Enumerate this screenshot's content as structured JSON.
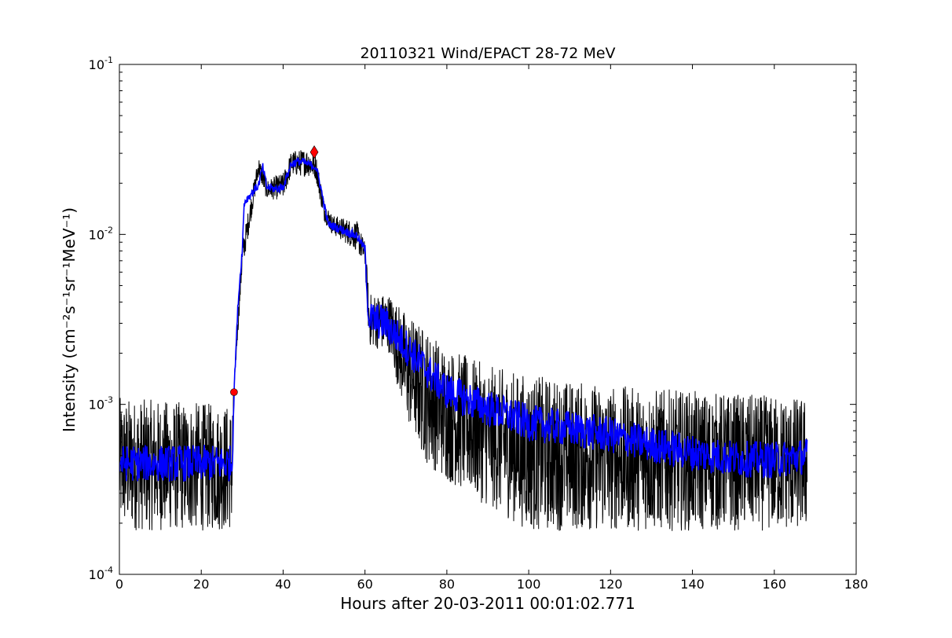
{
  "chart_data": {
    "type": "line",
    "title": "20110321 Wind/EPACT 28-72 MeV",
    "xlabel": "Hours after 20-03-2011 00:01:02.771",
    "ylabel": "Intensity (cm⁻²s⁻¹sr⁻¹MeV⁻¹)",
    "xlim": [
      0,
      180
    ],
    "ylim": [
      0.0001,
      0.1
    ],
    "yscale": "log",
    "grid": false,
    "x_ticks": [
      0,
      20,
      40,
      60,
      80,
      100,
      120,
      140,
      160,
      180
    ],
    "x_tick_labels": [
      "0",
      "20",
      "40",
      "60",
      "80",
      "100",
      "120",
      "140",
      "160",
      "180"
    ],
    "y_ticks": [
      0.0001,
      0.001,
      0.01,
      0.1
    ],
    "y_tick_labels": [
      {
        "base": "10",
        "exp": "-4"
      },
      {
        "base": "10",
        "exp": "-3"
      },
      {
        "base": "10",
        "exp": "-2"
      },
      {
        "base": "10",
        "exp": "-1"
      }
    ],
    "series": [
      {
        "style": "raw",
        "color": "#000000",
        "envelope": [
          {
            "x": 0,
            "low": 0.00018,
            "high": 0.0011
          },
          {
            "x": 27.5,
            "low": 0.00018,
            "high": 0.001
          },
          {
            "x": 28,
            "low": 0.0012,
            "high": 0.0013
          },
          {
            "x": 30,
            "low": 0.006,
            "high": 0.009
          },
          {
            "x": 34,
            "low": 0.022,
            "high": 0.029
          },
          {
            "x": 36,
            "low": 0.016,
            "high": 0.021
          },
          {
            "x": 40,
            "low": 0.016,
            "high": 0.023
          },
          {
            "x": 42,
            "low": 0.022,
            "high": 0.031
          },
          {
            "x": 46,
            "low": 0.022,
            "high": 0.032
          },
          {
            "x": 48,
            "low": 0.021,
            "high": 0.03
          },
          {
            "x": 50,
            "low": 0.012,
            "high": 0.016
          },
          {
            "x": 52,
            "low": 0.01,
            "high": 0.013
          },
          {
            "x": 58,
            "low": 0.008,
            "high": 0.012
          },
          {
            "x": 60,
            "low": 0.0065,
            "high": 0.009
          },
          {
            "x": 61,
            "low": 0.0022,
            "high": 0.0045
          },
          {
            "x": 66,
            "low": 0.002,
            "high": 0.0045
          },
          {
            "x": 70,
            "low": 0.0008,
            "high": 0.0035
          },
          {
            "x": 75,
            "low": 0.00045,
            "high": 0.0028
          },
          {
            "x": 80,
            "low": 0.00035,
            "high": 0.0022
          },
          {
            "x": 90,
            "low": 0.00025,
            "high": 0.0017
          },
          {
            "x": 100,
            "low": 0.00018,
            "high": 0.0015
          },
          {
            "x": 120,
            "low": 0.00018,
            "high": 0.0013
          },
          {
            "x": 140,
            "low": 0.00018,
            "high": 0.0012
          },
          {
            "x": 168,
            "low": 0.00018,
            "high": 0.0011
          }
        ]
      },
      {
        "style": "smoothed",
        "color": "#0000ff",
        "values": [
          {
            "x": 0,
            "y": 0.00045
          },
          {
            "x": 10,
            "y": 0.00045
          },
          {
            "x": 20,
            "y": 0.00045
          },
          {
            "x": 27.5,
            "y": 0.00045
          },
          {
            "x": 28,
            "y": 0.0012
          },
          {
            "x": 29,
            "y": 0.004
          },
          {
            "x": 30,
            "y": 0.008
          },
          {
            "x": 30.5,
            "y": 0.0155
          },
          {
            "x": 34,
            "y": 0.0195
          },
          {
            "x": 35,
            "y": 0.025
          },
          {
            "x": 36,
            "y": 0.019
          },
          {
            "x": 38,
            "y": 0.0185
          },
          {
            "x": 40,
            "y": 0.019
          },
          {
            "x": 42,
            "y": 0.026
          },
          {
            "x": 44,
            "y": 0.027
          },
          {
            "x": 46,
            "y": 0.026
          },
          {
            "x": 48,
            "y": 0.025
          },
          {
            "x": 49,
            "y": 0.02
          },
          {
            "x": 50,
            "y": 0.015
          },
          {
            "x": 51,
            "y": 0.0115
          },
          {
            "x": 55,
            "y": 0.0105
          },
          {
            "x": 58,
            "y": 0.0098
          },
          {
            "x": 60,
            "y": 0.0082
          },
          {
            "x": 60.8,
            "y": 0.0032
          },
          {
            "x": 65,
            "y": 0.003
          },
          {
            "x": 70,
            "y": 0.0022
          },
          {
            "x": 75,
            "y": 0.0016
          },
          {
            "x": 80,
            "y": 0.0012
          },
          {
            "x": 90,
            "y": 0.00095
          },
          {
            "x": 100,
            "y": 0.00078
          },
          {
            "x": 110,
            "y": 0.00072
          },
          {
            "x": 120,
            "y": 0.00066
          },
          {
            "x": 130,
            "y": 0.00058
          },
          {
            "x": 140,
            "y": 0.00052
          },
          {
            "x": 150,
            "y": 0.00048
          },
          {
            "x": 160,
            "y": 0.00047
          },
          {
            "x": 168,
            "y": 0.0005
          }
        ]
      }
    ],
    "markers": [
      {
        "shape": "circle",
        "color": "#ff0000",
        "x": 28,
        "y": 0.00118
      },
      {
        "shape": "diamond",
        "color": "#ff0000",
        "x": 47.6,
        "y": 0.0305
      }
    ]
  }
}
